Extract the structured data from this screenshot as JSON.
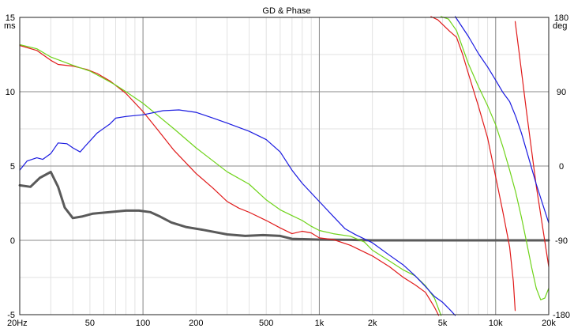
{
  "chart_data": {
    "type": "line",
    "title": "GD & Phase",
    "y_left_unit": "ms",
    "y_right_unit": "deg",
    "x_scale": "log",
    "xlim": [
      20,
      20000
    ],
    "ylim_left": [
      -5,
      15
    ],
    "ylim_right": [
      -180,
      180
    ],
    "grid": true,
    "x_ticks": [
      {
        "value": 20,
        "label": "20Hz"
      },
      {
        "value": 50,
        "label": "50"
      },
      {
        "value": 100,
        "label": "100"
      },
      {
        "value": 200,
        "label": "200"
      },
      {
        "value": 500,
        "label": "500"
      },
      {
        "value": 1000,
        "label": "1k"
      },
      {
        "value": 2000,
        "label": "2k"
      },
      {
        "value": 5000,
        "label": "5k"
      },
      {
        "value": 10000,
        "label": "10k"
      },
      {
        "value": 20000,
        "label": "20k"
      }
    ],
    "y_left_ticks": [
      {
        "value": 15,
        "label": "15"
      },
      {
        "value": 10,
        "label": "10"
      },
      {
        "value": 5,
        "label": "5"
      },
      {
        "value": 0,
        "label": "0"
      },
      {
        "value": -5,
        "label": "-5"
      }
    ],
    "y_right_ticks": [
      {
        "value": 180,
        "label": "180"
      },
      {
        "value": 90,
        "label": "90"
      },
      {
        "value": 0,
        "label": "0"
      },
      {
        "value": -90,
        "label": "-90"
      },
      {
        "value": -180,
        "label": "-180"
      }
    ],
    "series": [
      {
        "axis": "left",
        "color": "#5a5a5a",
        "points": [
          [
            20,
            3.7
          ],
          [
            23,
            3.6
          ],
          [
            26,
            4.2
          ],
          [
            30,
            4.6
          ],
          [
            33,
            3.6
          ],
          [
            36,
            2.2
          ],
          [
            40,
            1.5
          ],
          [
            45,
            1.6
          ],
          [
            52,
            1.8
          ],
          [
            65,
            1.9
          ],
          [
            80,
            2.0
          ],
          [
            95,
            2.0
          ],
          [
            110,
            1.9
          ],
          [
            125,
            1.6
          ],
          [
            145,
            1.2
          ],
          [
            175,
            0.9
          ],
          [
            220,
            0.7
          ],
          [
            300,
            0.4
          ],
          [
            380,
            0.3
          ],
          [
            480,
            0.35
          ],
          [
            600,
            0.3
          ],
          [
            700,
            0.1
          ],
          [
            1000,
            0.05
          ],
          [
            1500,
            0.03
          ],
          [
            2000,
            0.0
          ],
          [
            3000,
            0.0
          ],
          [
            5000,
            0.0
          ],
          [
            10000,
            0.0
          ],
          [
            20000,
            0.0
          ]
        ]
      },
      {
        "axis": "right",
        "color": "#e01a1a",
        "points": [
          [
            20,
            146
          ],
          [
            25,
            140
          ],
          [
            30,
            128
          ],
          [
            33,
            123
          ],
          [
            40,
            121
          ],
          [
            48,
            117
          ],
          [
            55,
            112
          ],
          [
            65,
            103
          ],
          [
            80,
            88
          ],
          [
            100,
            66
          ],
          [
            120,
            45
          ],
          [
            150,
            19
          ],
          [
            200,
            -9
          ],
          [
            250,
            -27
          ],
          [
            300,
            -43
          ],
          [
            350,
            -51
          ],
          [
            400,
            -56
          ],
          [
            500,
            -66
          ],
          [
            600,
            -75
          ],
          [
            700,
            -82
          ],
          [
            800,
            -79
          ],
          [
            900,
            -81
          ],
          [
            1000,
            -87
          ],
          [
            1200,
            -89
          ],
          [
            1500,
            -96
          ],
          [
            2000,
            -109
          ],
          [
            2500,
            -122
          ],
          [
            3000,
            -135
          ],
          [
            3500,
            -144
          ],
          [
            4000,
            -153
          ],
          [
            4500,
            -171
          ],
          [
            4750,
            -181
          ],
          [
            null,
            null
          ],
          [
            4300,
            181
          ],
          [
            4700,
            177
          ],
          [
            5500,
            163
          ],
          [
            6000,
            156
          ],
          [
            6500,
            135
          ],
          [
            7000,
            112
          ],
          [
            8000,
            72
          ],
          [
            9000,
            34
          ],
          [
            10000,
            -13
          ],
          [
            11000,
            -56
          ],
          [
            12000,
            -98
          ],
          [
            12600,
            -140
          ],
          [
            12900,
            -175
          ],
          [
            null,
            null
          ],
          [
            12900,
            175
          ],
          [
            13800,
            126
          ],
          [
            15000,
            64
          ],
          [
            17000,
            -24
          ],
          [
            20000,
            -122
          ]
        ]
      },
      {
        "axis": "right",
        "color": "#6fd31a",
        "points": [
          [
            20,
            147
          ],
          [
            25,
            142
          ],
          [
            30,
            132
          ],
          [
            40,
            122
          ],
          [
            50,
            115
          ],
          [
            60,
            106
          ],
          [
            70,
            98
          ],
          [
            80,
            90
          ],
          [
            100,
            76
          ],
          [
            120,
            62
          ],
          [
            150,
            45
          ],
          [
            200,
            22
          ],
          [
            250,
            6
          ],
          [
            300,
            -7
          ],
          [
            400,
            -22
          ],
          [
            500,
            -41
          ],
          [
            600,
            -53
          ],
          [
            700,
            -60
          ],
          [
            800,
            -66
          ],
          [
            900,
            -73
          ],
          [
            1000,
            -78
          ],
          [
            1200,
            -82
          ],
          [
            1500,
            -85
          ],
          [
            1800,
            -92
          ],
          [
            2000,
            -102
          ],
          [
            2500,
            -115
          ],
          [
            3000,
            -126
          ],
          [
            3500,
            -133
          ],
          [
            4000,
            -145
          ],
          [
            4500,
            -160
          ],
          [
            4900,
            -181
          ],
          [
            null,
            null
          ],
          [
            4900,
            181
          ],
          [
            5400,
            178
          ],
          [
            6000,
            164
          ],
          [
            7000,
            124
          ],
          [
            8000,
            96
          ],
          [
            9000,
            73
          ],
          [
            10000,
            50
          ],
          [
            11000,
            23
          ],
          [
            12000,
            -5
          ],
          [
            13000,
            -32
          ],
          [
            14000,
            -62
          ],
          [
            15000,
            -93
          ],
          [
            16000,
            -123
          ],
          [
            17000,
            -148
          ],
          [
            18000,
            -162
          ],
          [
            19000,
            -160
          ],
          [
            20000,
            -148
          ]
        ]
      },
      {
        "axis": "right",
        "color": "#1a1ae0",
        "points": [
          [
            20,
            -5
          ],
          [
            22,
            6
          ],
          [
            25,
            10
          ],
          [
            27,
            8
          ],
          [
            30,
            15
          ],
          [
            33,
            28
          ],
          [
            37,
            27
          ],
          [
            40,
            22
          ],
          [
            44,
            17
          ],
          [
            47,
            24
          ],
          [
            55,
            40
          ],
          [
            65,
            51
          ],
          [
            70,
            58
          ],
          [
            80,
            60
          ],
          [
            100,
            62
          ],
          [
            130,
            67
          ],
          [
            160,
            68
          ],
          [
            200,
            65
          ],
          [
            250,
            58
          ],
          [
            300,
            52
          ],
          [
            400,
            42
          ],
          [
            500,
            32
          ],
          [
            600,
            17
          ],
          [
            700,
            -5
          ],
          [
            800,
            -21
          ],
          [
            1000,
            -43
          ],
          [
            1200,
            -61
          ],
          [
            1400,
            -76
          ],
          [
            1600,
            -83
          ],
          [
            2000,
            -93
          ],
          [
            2500,
            -108
          ],
          [
            3000,
            -120
          ],
          [
            3500,
            -133
          ],
          [
            4000,
            -146
          ],
          [
            4500,
            -158
          ],
          [
            5000,
            -165
          ],
          [
            5500,
            -174
          ],
          [
            5900,
            -181
          ],
          [
            null,
            null
          ],
          [
            5900,
            181
          ],
          [
            7000,
            157
          ],
          [
            8000,
            136
          ],
          [
            9000,
            120
          ],
          [
            10000,
            104
          ],
          [
            11000,
            89
          ],
          [
            12000,
            78
          ],
          [
            13000,
            60
          ],
          [
            14000,
            40
          ],
          [
            15000,
            18
          ],
          [
            17000,
            -22
          ],
          [
            20000,
            -69
          ]
        ]
      }
    ]
  }
}
